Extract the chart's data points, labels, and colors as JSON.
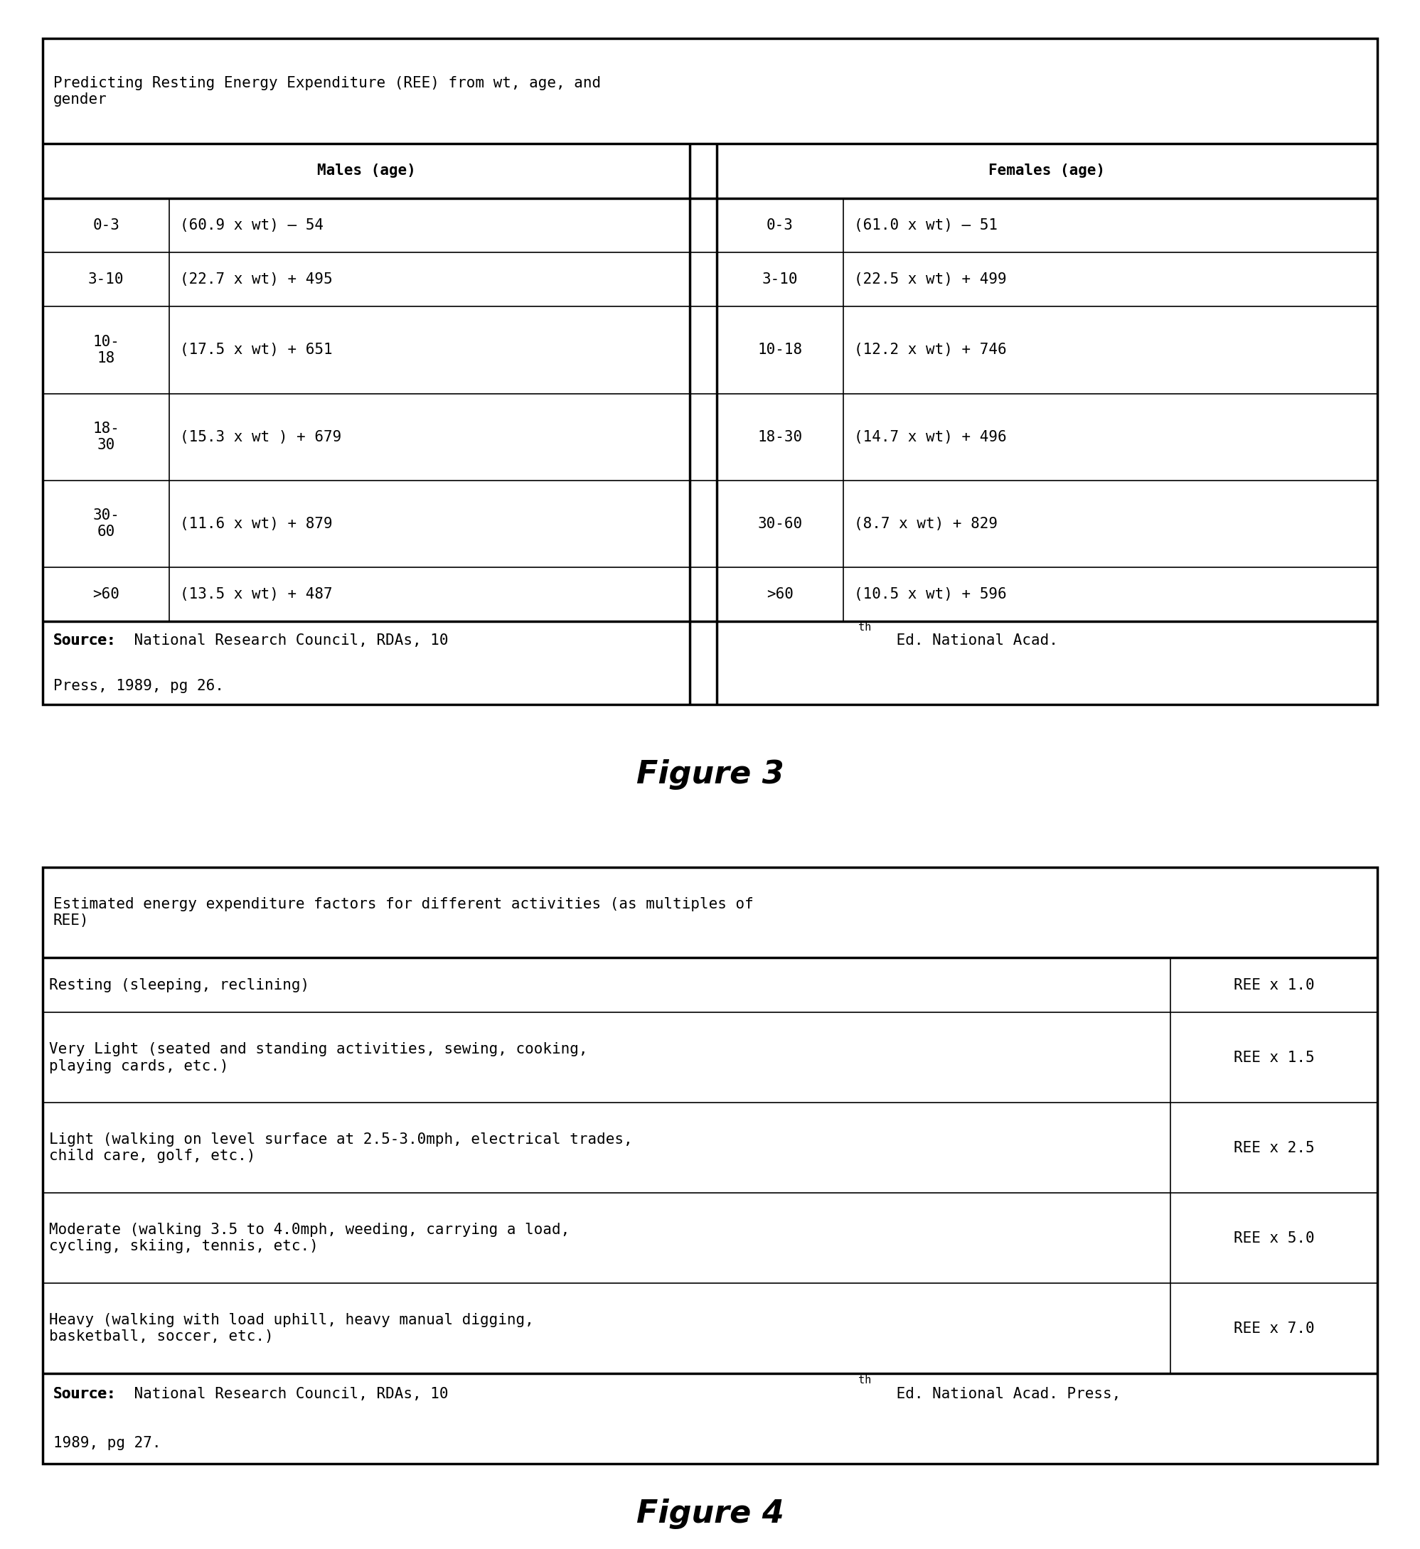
{
  "fig3_title": "Predicting Resting Energy Expenditure (REE) from wt, age, and\ngender",
  "fig3_header_males": "Males (age)",
  "fig3_header_females": "Females (age)",
  "fig3_males": [
    [
      "0-3",
      "(60.9 x wt) – 54"
    ],
    [
      "3-10",
      "(22.7 x wt) + 495"
    ],
    [
      "10-\n18",
      "(17.5 x wt) + 651"
    ],
    [
      "18-\n30",
      "(15.3 x wt ) + 679"
    ],
    [
      "30-\n60",
      "(11.6 x wt) + 879"
    ],
    [
      ">60",
      "(13.5 x wt) + 487"
    ]
  ],
  "fig3_females": [
    [
      "0-3",
      "(61.0 x wt) – 51"
    ],
    [
      "3-10",
      "(22.5 x wt) + 499"
    ],
    [
      "10-18",
      "(12.2 x wt) + 746"
    ],
    [
      "18-30",
      "(14.7 x wt) + 496"
    ],
    [
      "30-60",
      "(8.7 x wt) + 829"
    ],
    [
      ">60",
      "(10.5 x wt) + 596"
    ]
  ],
  "fig3_source_bold": "Source:",
  "fig3_source_normal": "  National Research Council, RDAs, 10",
  "fig3_source_sup": "th",
  "fig3_source_end": " Ed. National Acad. Press, 1989, pg 26.",
  "fig3_caption": "Figure 3",
  "fig4_title": "Estimated energy expenditure factors for different activities (as multiples of\nREE)",
  "fig4_rows": [
    [
      "Resting (sleeping, reclining)",
      "REE x 1.0"
    ],
    [
      "Very Light (seated and standing activities, sewing, cooking,\nplaying cards, etc.)",
      "REE x 1.5"
    ],
    [
      "Light (walking on level surface at 2.5-3.0mph, electrical trades,\nchild care, golf, etc.)",
      "REE x 2.5"
    ],
    [
      "Moderate (walking 3.5 to 4.0mph, weeding, carrying a load,\ncycling, skiing, tennis, etc.)",
      "REE x 5.0"
    ],
    [
      "Heavy (walking with load uphill, heavy manual digging,\nbasketball, soccer, etc.)",
      "REE x 7.0"
    ]
  ],
  "fig4_source_bold": "Source:",
  "fig4_source_normal": "  National Research Council, RDAs, 10",
  "fig4_source_sup": "th",
  "fig4_source_end": " Ed. National Acad. Press, 1989, pg 27.",
  "fig4_caption": "Figure 4",
  "background_color": "#ffffff",
  "text_color": "#000000",
  "font_size": 15,
  "caption_font_size": 32,
  "font_family": "DejaVu Sans Mono"
}
